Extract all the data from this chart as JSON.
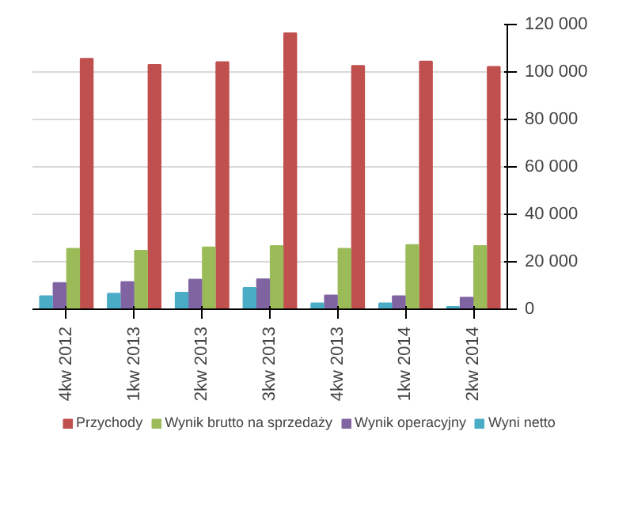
{
  "chart_data": {
    "type": "bar",
    "categories": [
      "4kw 2012",
      "1kw 2013",
      "2kw 2013",
      "3kw 2013",
      "4kw 2013",
      "1kw 2014",
      "2kw 2014"
    ],
    "series": [
      {
        "name": "Przychody",
        "color": "#c0504d",
        "values": [
          105600,
          103000,
          104200,
          116300,
          102600,
          104400,
          102200
        ]
      },
      {
        "name": "Wynik brutto na sprzedaży",
        "color": "#9bbb59",
        "values": [
          25500,
          24700,
          26100,
          26700,
          25500,
          27100,
          26700
        ]
      },
      {
        "name": "Wynik operacyjny",
        "color": "#8064a2",
        "values": [
          11100,
          11500,
          12500,
          12700,
          5800,
          5500,
          4900
        ]
      },
      {
        "name": "Wyni netto",
        "color": "#4bacc6",
        "values": [
          5500,
          6600,
          7000,
          9000,
          2500,
          2500,
          1000
        ]
      }
    ],
    "ylim": [
      0,
      120000
    ],
    "yticks": [
      {
        "value": 0,
        "label": "0"
      },
      {
        "value": 20000,
        "label": "20 000"
      },
      {
        "value": 40000,
        "label": "40 000"
      },
      {
        "value": 60000,
        "label": "60 000"
      },
      {
        "value": 80000,
        "label": "80 000"
      },
      {
        "value": 100000,
        "label": "100 000"
      },
      {
        "value": 120000,
        "label": "120 000"
      }
    ],
    "grid": "y",
    "legend": "bottom"
  }
}
